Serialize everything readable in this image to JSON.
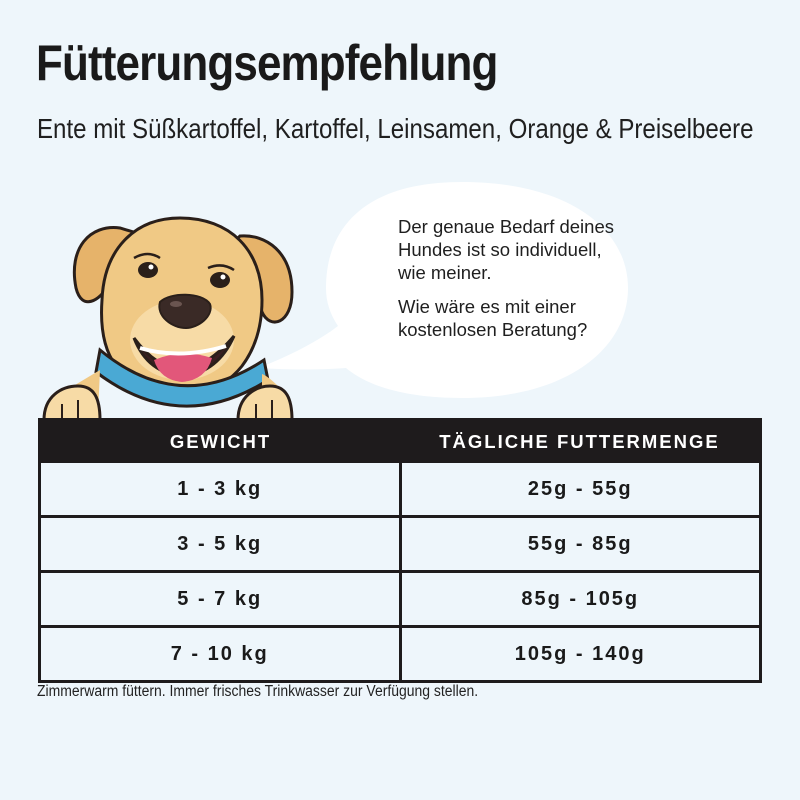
{
  "header": {
    "title": "Fütterungsempfehlung",
    "subtitle": "Ente mit Süßkartoffel, Kartoffel, Leinsamen, Orange & Preiselbeere"
  },
  "bubble": {
    "line1": "Der genaue Bedarf deines Hundes ist so individuell, wie meiner.",
    "line2": "Wie wäre es mit einer kostenlosen Beratung?"
  },
  "table": {
    "headers": [
      "GEWICHT",
      "TÄGLICHE FUTTERMENGE"
    ],
    "rows": [
      [
        "1 - 3 kg",
        "25g - 55g"
      ],
      [
        "3 - 5 kg",
        "55g - 85g"
      ],
      [
        "5 - 7 kg",
        "85g - 105g"
      ],
      [
        "7 - 10 kg",
        "105g - 140g"
      ]
    ]
  },
  "footnote": "Zimmerwarm füttern. Immer frisches Trinkwasser zur Verfügung stellen.",
  "colors": {
    "background": "#eef6fb",
    "table_header": "#1e1b1c",
    "collar": "#4aa9d4",
    "dog_fur": "#f0c985"
  }
}
